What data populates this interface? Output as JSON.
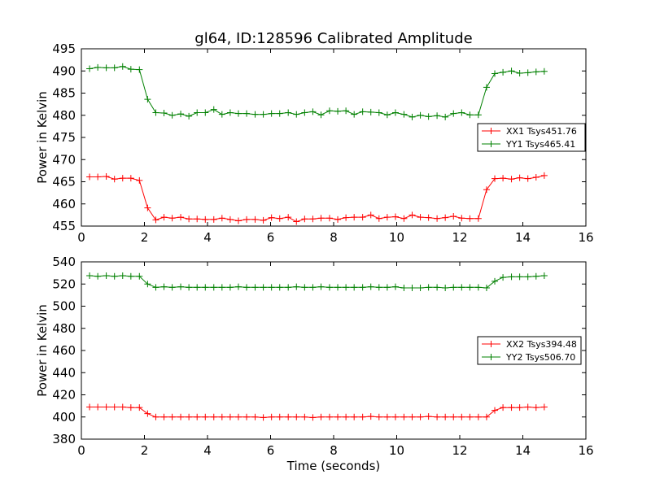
{
  "figure": {
    "title": "gl64, ID:128596 Calibrated Amplitude",
    "xlabel": "Time (seconds)"
  },
  "chart_data": [
    {
      "type": "line",
      "title": "gl64, ID:128596 Calibrated Amplitude",
      "xlabel": "",
      "ylabel": "Power in Kelvin",
      "xlim": [
        0,
        16
      ],
      "ylim": [
        455,
        495
      ],
      "xticks": [
        0,
        2,
        4,
        6,
        8,
        10,
        12,
        14,
        16
      ],
      "yticks": [
        455,
        460,
        465,
        470,
        475,
        480,
        485,
        490,
        495
      ],
      "grid": false,
      "legend_position": "right",
      "x": [
        0.26,
        0.52,
        0.79,
        1.05,
        1.31,
        1.57,
        1.84,
        2.1,
        2.36,
        2.62,
        2.88,
        3.15,
        3.41,
        3.67,
        3.93,
        4.2,
        4.46,
        4.72,
        4.98,
        5.24,
        5.51,
        5.77,
        6.03,
        6.29,
        6.56,
        6.82,
        7.08,
        7.34,
        7.6,
        7.87,
        8.13,
        8.39,
        8.65,
        8.92,
        9.18,
        9.44,
        9.7,
        9.96,
        10.23,
        10.49,
        10.75,
        11.01,
        11.28,
        11.54,
        11.8,
        12.06,
        12.32,
        12.59,
        12.85,
        13.11,
        13.37,
        13.64,
        13.9,
        14.16,
        14.42,
        14.68
      ],
      "series": [
        {
          "name": "XX1 Tsys451.76",
          "color": "#ff0000",
          "values": [
            466.1,
            466.1,
            466.2,
            465.6,
            465.8,
            465.8,
            465.3,
            459.1,
            456.4,
            457.0,
            456.8,
            457.0,
            456.6,
            456.6,
            456.5,
            456.5,
            456.8,
            456.5,
            456.2,
            456.5,
            456.5,
            456.3,
            456.9,
            456.7,
            457.0,
            456.0,
            456.6,
            456.6,
            456.8,
            456.8,
            456.5,
            456.9,
            457.0,
            457.0,
            457.5,
            456.7,
            457.0,
            457.1,
            456.7,
            457.5,
            457.0,
            456.9,
            456.7,
            456.9,
            457.2,
            456.8,
            456.7,
            456.7,
            463.2,
            465.7,
            465.8,
            465.6,
            465.9,
            465.7,
            466.0,
            466.4
          ]
        },
        {
          "name": "YY1 Tsys465.41",
          "color": "#008000",
          "values": [
            490.5,
            490.8,
            490.7,
            490.7,
            491.0,
            490.4,
            490.3,
            483.6,
            480.6,
            480.5,
            480.0,
            480.3,
            479.8,
            480.6,
            480.6,
            481.3,
            480.2,
            480.6,
            480.4,
            480.4,
            480.2,
            480.2,
            480.4,
            480.4,
            480.6,
            480.2,
            480.6,
            480.8,
            480.1,
            481.0,
            480.9,
            481.0,
            480.2,
            480.8,
            480.7,
            480.6,
            480.1,
            480.6,
            480.2,
            479.6,
            480.0,
            479.7,
            479.9,
            479.6,
            480.4,
            480.6,
            480.1,
            480.1,
            486.3,
            489.4,
            489.7,
            490.0,
            489.5,
            489.6,
            489.8,
            489.9
          ]
        }
      ]
    },
    {
      "type": "line",
      "title": "",
      "xlabel": "Time (seconds)",
      "ylabel": "Power in Kelvin",
      "xlim": [
        0,
        16
      ],
      "ylim": [
        380,
        540
      ],
      "xticks": [
        0,
        2,
        4,
        6,
        8,
        10,
        12,
        14,
        16
      ],
      "yticks": [
        380,
        400,
        420,
        440,
        460,
        480,
        500,
        520,
        540
      ],
      "grid": false,
      "legend_position": "right",
      "x": [
        0.26,
        0.52,
        0.79,
        1.05,
        1.31,
        1.57,
        1.84,
        2.1,
        2.36,
        2.62,
        2.88,
        3.15,
        3.41,
        3.67,
        3.93,
        4.2,
        4.46,
        4.72,
        4.98,
        5.24,
        5.51,
        5.77,
        6.03,
        6.29,
        6.56,
        6.82,
        7.08,
        7.34,
        7.6,
        7.87,
        8.13,
        8.39,
        8.65,
        8.92,
        9.18,
        9.44,
        9.7,
        9.96,
        10.23,
        10.49,
        10.75,
        11.01,
        11.28,
        11.54,
        11.8,
        12.06,
        12.32,
        12.59,
        12.85,
        13.11,
        13.37,
        13.64,
        13.9,
        14.16,
        14.42,
        14.68
      ],
      "series": [
        {
          "name": "XX2 Tsys394.48",
          "color": "#ff0000",
          "values": [
            409,
            409,
            409,
            409,
            409,
            408.5,
            408.5,
            403,
            400,
            400,
            400,
            400,
            400,
            400,
            400,
            400,
            400,
            400,
            400,
            400,
            400,
            399.5,
            400,
            400,
            400,
            400,
            400,
            399.5,
            400,
            400,
            400,
            400,
            400,
            400,
            400.5,
            400,
            400,
            400,
            400,
            400,
            400,
            400.5,
            400,
            400,
            400,
            400,
            400,
            400,
            400,
            406,
            408.5,
            408.5,
            408.5,
            409,
            408.5,
            409
          ]
        },
        {
          "name": "YY2 Tsys506.70",
          "color": "#008000",
          "values": [
            527.5,
            527,
            527.5,
            527,
            527.5,
            527,
            527,
            520,
            517,
            517.5,
            517,
            517.5,
            517,
            517,
            517,
            517,
            517,
            517,
            517.5,
            517,
            517,
            517,
            517,
            517,
            517,
            517.5,
            517,
            517,
            517.5,
            517,
            517,
            517,
            517,
            517,
            517.5,
            517,
            517,
            517.5,
            516.5,
            516.5,
            516.5,
            517,
            517,
            516.5,
            517,
            517,
            517,
            517,
            516.5,
            522.5,
            526,
            526.5,
            526.5,
            526.5,
            527,
            527.5
          ]
        }
      ]
    }
  ]
}
